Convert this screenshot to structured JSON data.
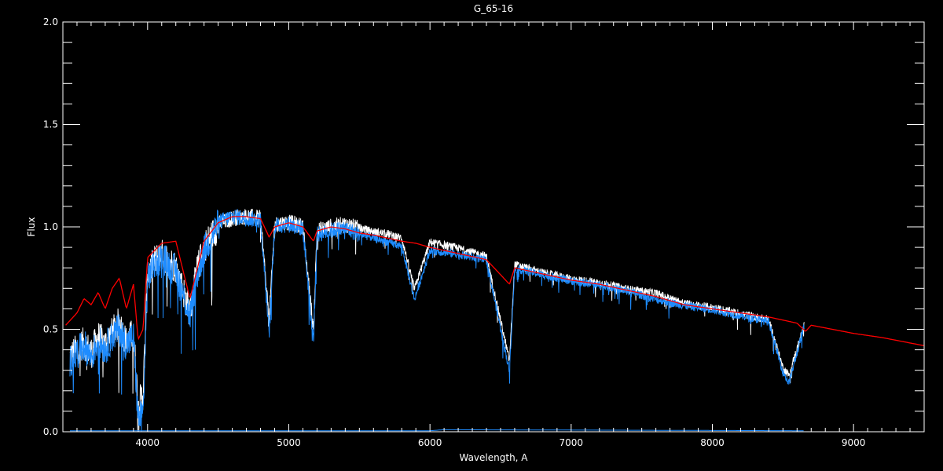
{
  "chart_data": {
    "type": "line",
    "title": "G_65-16",
    "xlabel": "Wavelength, A",
    "ylabel": "Flux",
    "xlim": [
      3400,
      9500
    ],
    "ylim": [
      0.0,
      2.0
    ],
    "x_ticks": [
      4000,
      5000,
      6000,
      7000,
      8000,
      9000
    ],
    "x_tick_labels": [
      "4000",
      "5000",
      "6000",
      "7000",
      "8000",
      "9000"
    ],
    "y_ticks": [
      0.0,
      0.5,
      1.0,
      1.5,
      2.0
    ],
    "y_tick_labels": [
      "0.0",
      "0.5",
      "1.0",
      "1.5",
      "2.0"
    ],
    "grid": false,
    "background": "#000000",
    "series": [
      {
        "color": "#ffffff",
        "x": [
          3450,
          3500,
          3550,
          3600,
          3650,
          3700,
          3750,
          3800,
          3850,
          3900,
          3933,
          3968,
          4000,
          4050,
          4100,
          4200,
          4300,
          4350,
          4400,
          4500,
          4600,
          4700,
          4800,
          4861,
          4900,
          5000,
          5100,
          5175,
          5200,
          5300,
          5400,
          5500,
          5600,
          5700,
          5800,
          5890,
          6000,
          6200,
          6400,
          6563,
          6600,
          6800,
          7000,
          7200,
          7400,
          7600,
          7800,
          8000,
          8200,
          8400,
          8498,
          8542,
          8650
        ],
        "y": [
          0.38,
          0.42,
          0.45,
          0.4,
          0.48,
          0.44,
          0.5,
          0.55,
          0.45,
          0.5,
          0.15,
          0.2,
          0.78,
          0.85,
          0.88,
          0.82,
          0.6,
          0.8,
          0.92,
          1.02,
          1.05,
          1.06,
          1.05,
          0.55,
          1.02,
          1.03,
          1.01,
          0.5,
          0.99,
          1.01,
          1.02,
          1.0,
          0.98,
          0.97,
          0.95,
          0.7,
          0.93,
          0.9,
          0.86,
          0.35,
          0.82,
          0.78,
          0.75,
          0.73,
          0.7,
          0.68,
          0.63,
          0.61,
          0.58,
          0.55,
          0.32,
          0.28,
          0.52
        ]
      },
      {
        "color": "#1e8cff",
        "x": [
          3450,
          3500,
          3550,
          3600,
          3650,
          3700,
          3750,
          3800,
          3850,
          3900,
          3933,
          3968,
          4000,
          4050,
          4100,
          4200,
          4300,
          4350,
          4400,
          4500,
          4600,
          4700,
          4800,
          4861,
          4900,
          5000,
          5100,
          5175,
          5200,
          5300,
          5400,
          5500,
          5600,
          5700,
          5800,
          5890,
          6000,
          6200,
          6400,
          6563,
          6600,
          6800,
          7000,
          7200,
          7400,
          7600,
          7800,
          8000,
          8200,
          8400,
          8498,
          8542,
          8650
        ],
        "y": [
          0.36,
          0.4,
          0.44,
          0.38,
          0.46,
          0.42,
          0.48,
          0.52,
          0.44,
          0.48,
          0.08,
          0.1,
          0.76,
          0.84,
          0.87,
          0.8,
          0.58,
          0.78,
          0.9,
          1.03,
          1.06,
          1.05,
          1.04,
          0.48,
          1.01,
          1.02,
          1.0,
          0.45,
          0.97,
          0.99,
          1.0,
          0.97,
          0.95,
          0.93,
          0.91,
          0.65,
          0.89,
          0.87,
          0.84,
          0.3,
          0.8,
          0.77,
          0.74,
          0.72,
          0.69,
          0.65,
          0.62,
          0.6,
          0.57,
          0.54,
          0.3,
          0.24,
          0.52
        ]
      },
      {
        "color": "#ff0000",
        "x": [
          3420,
          3500,
          3550,
          3600,
          3650,
          3700,
          3750,
          3800,
          3850,
          3900,
          3933,
          3968,
          4000,
          4100,
          4200,
          4300,
          4400,
          4500,
          4600,
          4700,
          4800,
          4861,
          4900,
          5000,
          5100,
          5175,
          5200,
          5300,
          5400,
          5500,
          5600,
          5800,
          5900,
          6000,
          6200,
          6400,
          6563,
          6600,
          6800,
          7000,
          7200,
          7400,
          7600,
          7800,
          8000,
          8200,
          8400,
          8600,
          8660,
          8700,
          9000,
          9200,
          9500
        ],
        "y": [
          0.52,
          0.58,
          0.65,
          0.62,
          0.68,
          0.6,
          0.7,
          0.75,
          0.6,
          0.72,
          0.45,
          0.5,
          0.85,
          0.92,
          0.93,
          0.65,
          0.93,
          1.02,
          1.05,
          1.05,
          1.04,
          0.95,
          1.0,
          1.02,
          1.0,
          0.93,
          0.98,
          1.0,
          0.99,
          0.97,
          0.96,
          0.93,
          0.92,
          0.9,
          0.87,
          0.84,
          0.72,
          0.8,
          0.77,
          0.74,
          0.72,
          0.69,
          0.66,
          0.62,
          0.6,
          0.58,
          0.56,
          0.53,
          0.49,
          0.52,
          0.48,
          0.46,
          0.42
        ]
      },
      {
        "color": "#1e8cff",
        "x": [
          3450,
          6000,
          6100,
          8650
        ],
        "y": [
          0.005,
          0.005,
          0.01,
          0.005
        ]
      }
    ]
  }
}
